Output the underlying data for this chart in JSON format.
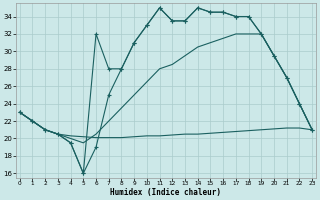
{
  "xlabel": "Humidex (Indice chaleur)",
  "bg_color": "#cce8e8",
  "grid_color": "#aacccc",
  "line_color": "#1a6060",
  "ylim": [
    15.5,
    35.5
  ],
  "xlim": [
    -0.3,
    23.3
  ],
  "yticks": [
    16,
    18,
    20,
    22,
    24,
    26,
    28,
    30,
    32,
    34
  ],
  "xticks": [
    0,
    1,
    2,
    3,
    4,
    5,
    6,
    7,
    8,
    9,
    10,
    11,
    12,
    13,
    14,
    15,
    16,
    17,
    18,
    19,
    20,
    21,
    22,
    23
  ],
  "line_flat_x": [
    0,
    1,
    2,
    3,
    4,
    5,
    6,
    7,
    8,
    9,
    10,
    11,
    12,
    13,
    14,
    15,
    16,
    17,
    18,
    19,
    20,
    21,
    22,
    23
  ],
  "line_flat_y": [
    23.0,
    22.0,
    21.0,
    20.5,
    20.3,
    20.2,
    20.1,
    20.1,
    20.1,
    20.2,
    20.3,
    20.3,
    20.4,
    20.5,
    20.5,
    20.6,
    20.7,
    20.8,
    20.9,
    21.0,
    21.1,
    21.2,
    21.2,
    21.0
  ],
  "line_diag_x": [
    0,
    1,
    2,
    3,
    4,
    5,
    6,
    7,
    8,
    9,
    10,
    11,
    12,
    13,
    14,
    15,
    16,
    17,
    18,
    19,
    20,
    21,
    22,
    23
  ],
  "line_diag_y": [
    23.0,
    22.0,
    21.0,
    20.5,
    20.0,
    19.5,
    20.5,
    22.0,
    23.5,
    25.0,
    26.5,
    28.0,
    28.5,
    29.5,
    30.5,
    31.0,
    31.5,
    32.0,
    32.0,
    32.0,
    29.5,
    27.0,
    24.0,
    21.0
  ],
  "line_main_x": [
    0,
    1,
    2,
    3,
    4,
    5,
    6,
    7,
    8,
    9,
    10,
    11,
    12,
    13,
    14,
    15,
    16,
    17,
    18,
    19,
    20,
    21,
    22,
    23
  ],
  "line_main_y": [
    23.0,
    22.0,
    21.0,
    20.5,
    19.5,
    16.0,
    19.0,
    25.0,
    28.0,
    31.0,
    33.0,
    35.0,
    33.5,
    33.5,
    35.0,
    34.5,
    34.5,
    34.0,
    34.0,
    32.0,
    29.5,
    27.0,
    24.0,
    21.0
  ],
  "line_upper_x": [
    0,
    1,
    2,
    3,
    4,
    5,
    6,
    7,
    8,
    9,
    10,
    11,
    12,
    13,
    14,
    15,
    16,
    17,
    18,
    19,
    20,
    21,
    22,
    23
  ],
  "line_upper_y": [
    23.0,
    22.0,
    21.0,
    20.5,
    19.5,
    16.0,
    32.0,
    28.0,
    28.0,
    31.0,
    33.0,
    35.0,
    33.5,
    33.5,
    35.0,
    34.5,
    34.5,
    34.0,
    34.0,
    32.0,
    29.5,
    27.0,
    24.0,
    21.0
  ]
}
